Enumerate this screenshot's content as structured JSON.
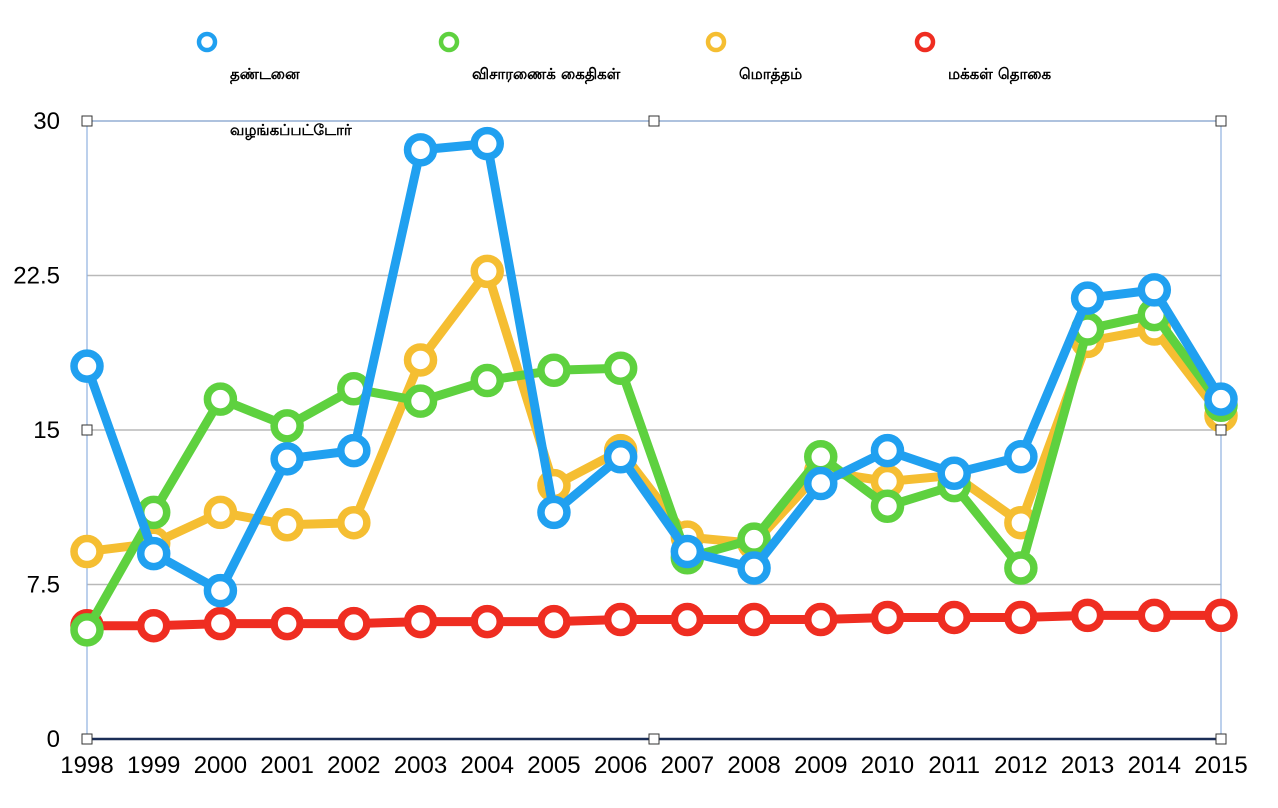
{
  "legend": {
    "items": [
      {
        "line1": "தண்டனை",
        "line2": "வழங்கப்பட்டோர்",
        "color": "#20a0f0"
      },
      {
        "line1": "விசாரணைக் கைதிகள்",
        "line2": "",
        "color": "#5ed13f"
      },
      {
        "line1": "மொத்தம்",
        "line2": "",
        "color": "#f5be32"
      },
      {
        "line1": "மக்கள் தொகை",
        "line2": "",
        "color": "#ef2d21"
      }
    ]
  },
  "chart_data": {
    "type": "line",
    "x": [
      "1998",
      "1999",
      "2000",
      "2001",
      "2002",
      "2003",
      "2004",
      "2005",
      "2006",
      "2007",
      "2008",
      "2009",
      "2010",
      "2011",
      "2012",
      "2013",
      "2014",
      "2015"
    ],
    "ylim": [
      0,
      30
    ],
    "yticks": [
      "0",
      "7.5",
      "15",
      "22.5",
      "30"
    ],
    "grid": true,
    "legend_position": "top",
    "series": [
      {
        "name": "மக்கள் தொகை",
        "color": "#ef2d21",
        "values": [
          5.5,
          5.5,
          5.6,
          5.6,
          5.6,
          5.7,
          5.7,
          5.7,
          5.8,
          5.8,
          5.8,
          5.8,
          5.9,
          5.9,
          5.9,
          6.0,
          6.0,
          6.0
        ]
      },
      {
        "name": "மொத்தம்",
        "color": "#f5be32",
        "values": [
          9.1,
          9.5,
          11.0,
          10.4,
          10.5,
          18.4,
          22.7,
          12.3,
          14.0,
          9.8,
          9.5,
          13.0,
          12.5,
          12.8,
          10.5,
          19.3,
          19.9,
          15.7
        ]
      },
      {
        "name": "விசாரணைக் கைதிகள்",
        "color": "#5ed13f",
        "values": [
          5.3,
          11.0,
          16.5,
          15.2,
          17.0,
          16.4,
          17.4,
          17.9,
          18.0,
          8.8,
          9.7,
          13.7,
          11.3,
          12.3,
          8.3,
          19.9,
          20.6,
          16.2
        ]
      },
      {
        "name": "தண்டனை வழங்கப்பட்டோர்",
        "color": "#20a0f0",
        "values": [
          18.1,
          9.0,
          7.2,
          13.6,
          14.0,
          28.6,
          28.9,
          11.0,
          13.7,
          9.1,
          8.3,
          12.4,
          14.0,
          12.9,
          13.7,
          21.4,
          21.8,
          16.5
        ]
      }
    ]
  }
}
